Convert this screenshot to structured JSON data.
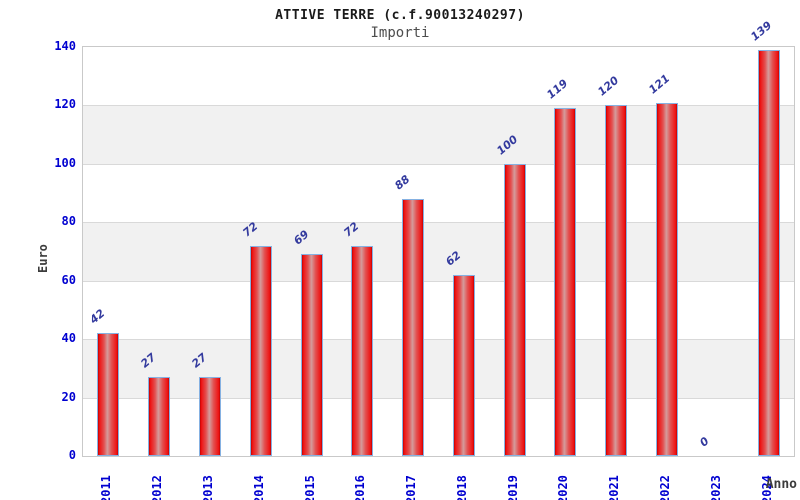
{
  "chart_data": {
    "type": "bar",
    "title": "ATTIVE TERRE (c.f.90013240297)",
    "subtitle": "Importi",
    "xlabel": "Anno",
    "ylabel": "Euro",
    "categories": [
      "2011",
      "2012",
      "2013",
      "2014",
      "2015",
      "2016",
      "2017",
      "2018",
      "2019",
      "2020",
      "2021",
      "2022",
      "2023",
      "2024"
    ],
    "values": [
      42,
      27,
      27,
      72,
      69,
      72,
      88,
      62,
      100,
      119,
      120,
      121,
      0,
      139
    ],
    "ylim": [
      0,
      140
    ],
    "yticks": [
      0,
      20,
      40,
      60,
      80,
      100,
      120,
      140
    ],
    "grid": "horizontal-bands",
    "legend": "none"
  },
  "colors": {
    "tick_blue": "#0000d0",
    "value_label_blue": "#333a9e",
    "bar_red": "#ee1313",
    "bar_dark_red": "#c40000",
    "bar_highlight": "#d49c9c",
    "bar_border_blue": "#85b1e2",
    "band_gray": "#f1f1f1",
    "grid_line": "#d9d9d9",
    "plot_border": "#c9c9c9",
    "title_color": "#1a1a1a",
    "subtitle_color": "#4d4d4d",
    "axis_title_color": "#3c3c3c"
  }
}
